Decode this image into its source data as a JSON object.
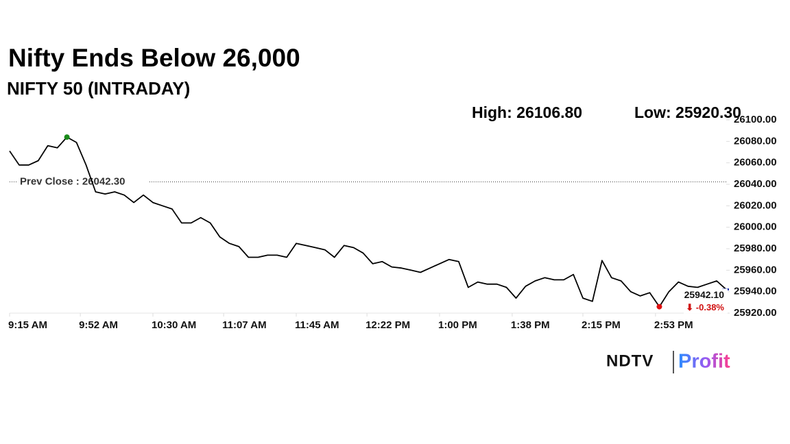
{
  "chart_data": {
    "type": "line",
    "title": "Nifty Ends Below 26,000",
    "subtitle": "NIFTY 50 (INTRADAY)",
    "high_label": "High: 26106.80",
    "low_label": "Low: 25920.30",
    "prev_close": 26042.3,
    "prev_close_label": "Prev Close : 26042.30",
    "last_value_label": "25942.10",
    "change_label": "⬇ -0.38%",
    "x": [
      "9:15 AM",
      "9:20 AM",
      "9:25 AM",
      "9:30 AM",
      "9:35 AM",
      "9:40 AM",
      "9:45 AM",
      "9:50 AM",
      "9:55 AM",
      "10:00 AM",
      "10:05 AM",
      "10:10 AM",
      "10:15 AM",
      "10:20 AM",
      "10:25 AM",
      "10:30 AM",
      "10:35 AM",
      "10:40 AM",
      "10:45 AM",
      "10:50 AM",
      "10:55 AM",
      "11:00 AM",
      "11:05 AM",
      "11:10 AM",
      "11:15 AM",
      "11:20 AM",
      "11:25 AM",
      "11:30 AM",
      "11:35 AM",
      "11:40 AM",
      "11:45 AM",
      "11:50 AM",
      "11:55 AM",
      "12:00 PM",
      "12:05 PM",
      "12:10 PM",
      "12:15 PM",
      "12:20 PM",
      "12:25 PM",
      "12:30 PM",
      "12:35 PM",
      "12:40 PM",
      "12:45 PM",
      "12:50 PM",
      "12:55 PM",
      "1:00 PM",
      "1:05 PM",
      "1:10 PM",
      "1:15 PM",
      "1:20 PM",
      "1:25 PM",
      "1:30 PM",
      "1:35 PM",
      "1:40 PM",
      "1:45 PM",
      "1:50 PM",
      "1:55 PM",
      "2:00 PM",
      "2:05 PM",
      "2:10 PM",
      "2:15 PM",
      "2:20 PM",
      "2:25 PM",
      "2:30 PM",
      "2:35 PM",
      "2:40 PM",
      "2:45 PM",
      "2:50 PM",
      "2:55 PM",
      "3:00 PM",
      "3:05 PM",
      "3:10 PM",
      "3:15 PM",
      "3:20 PM",
      "3:25 PM",
      "3:30 PM"
    ],
    "series": [
      {
        "name": "NIFTY 50",
        "color": "#000000",
        "values": [
          26071,
          26058,
          26058,
          26062,
          26076,
          26074,
          26084,
          26079,
          26058,
          26033,
          26031,
          26033,
          26030,
          26023,
          26030,
          26023,
          26020,
          26017,
          26004,
          26004,
          26009,
          26004,
          25991,
          25985,
          25982,
          25972,
          25972,
          25974,
          25974,
          25972,
          25985,
          25983,
          25981,
          25979,
          25972,
          25983,
          25981,
          25976,
          25966,
          25968,
          25963,
          25962,
          25960,
          25958,
          25962,
          25966,
          25970,
          25968,
          25944,
          25949,
          25947,
          25947,
          25944,
          25934,
          25945,
          25950,
          25953,
          25951,
          25951,
          25956,
          25934,
          25931,
          25969,
          25953,
          25950,
          25940,
          25936,
          25939,
          25926,
          25940,
          25949,
          25945,
          25944,
          25947,
          25950,
          25942.1
        ]
      }
    ],
    "xlim": [
      "9:15 AM",
      "3:30 PM"
    ],
    "xticks": [
      "9:15 AM",
      "9:52 AM",
      "10:30 AM",
      "11:07 AM",
      "11:45 AM",
      "12:22 PM",
      "1:00 PM",
      "1:38 PM",
      "2:15 PM",
      "2:53 PM"
    ],
    "ylim": [
      25920,
      26100
    ],
    "yticks": [
      {
        "value": 25920,
        "label": "25920.00"
      },
      {
        "value": 25940,
        "label": "25940.00"
      },
      {
        "value": 25960,
        "label": "25960.00"
      },
      {
        "value": 25980,
        "label": "25980.00"
      },
      {
        "value": 26000,
        "label": "26000.00"
      },
      {
        "value": 26020,
        "label": "26020.00"
      },
      {
        "value": 26040,
        "label": "26040.00"
      },
      {
        "value": 26060,
        "label": "26060.00"
      },
      {
        "value": 26080,
        "label": "26080.00"
      },
      {
        "value": 26100,
        "label": "26100.00"
      }
    ],
    "logo": {
      "brand": "NDTV",
      "product": "Profit"
    }
  }
}
